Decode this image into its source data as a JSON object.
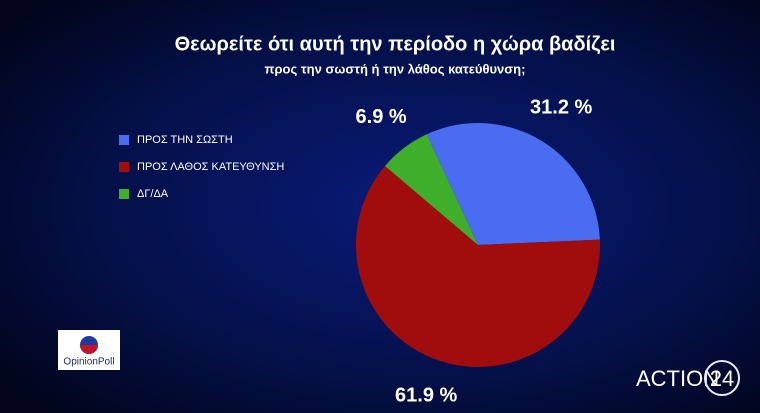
{
  "chart_data": {
    "type": "pie",
    "title": "Θεωρείτε ότι αυτή την περίοδο η χώρα βαδίζει",
    "subtitle": "προς την σωστή ή την λάθος κατεύθυνση;",
    "categories": [
      "ΠΡΟΣ ΤΗΝ ΣΩΣΤΗ",
      "ΠΡΟΣ ΛΑΘΟΣ ΚΑΤΕΥΘΥΝΣΗ",
      "ΔΓ/ΔΑ"
    ],
    "values": [
      31.2,
      61.9,
      6.9
    ],
    "value_labels": [
      "31.2 %",
      "61.9 %",
      "6.9 %"
    ],
    "colors": [
      "#4a6cf0",
      "#a10d0d",
      "#3fae2a"
    ],
    "legend": "left"
  },
  "logos": {
    "pollster": "OpinionPoll",
    "channel": "ACTION",
    "channel_number": "24"
  }
}
